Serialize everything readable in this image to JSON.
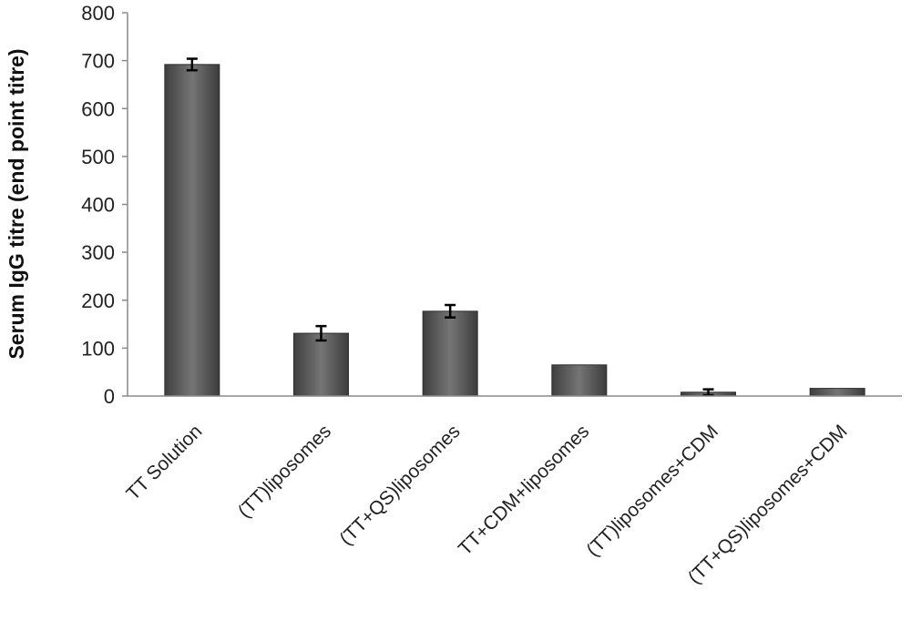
{
  "chart_data": {
    "type": "bar",
    "title": "",
    "xlabel": "",
    "ylabel": "Serum IgG titre (end point titre)",
    "ylim": [
      0,
      800
    ],
    "yticks": [
      0,
      100,
      200,
      300,
      400,
      500,
      600,
      700,
      800
    ],
    "grid": false,
    "categories": [
      "TT Solution",
      "(TT)liposomes",
      "(TT+QS)liposomes",
      "TT+CDM+liposomes",
      "(TT)liposomes+CDM",
      "(TT+QS)liposomes+CDM"
    ],
    "values": [
      692,
      131,
      177,
      65,
      8,
      16
    ],
    "errors": [
      12,
      15,
      13,
      0,
      6,
      0
    ],
    "bar_color": "#6e6e6e"
  }
}
